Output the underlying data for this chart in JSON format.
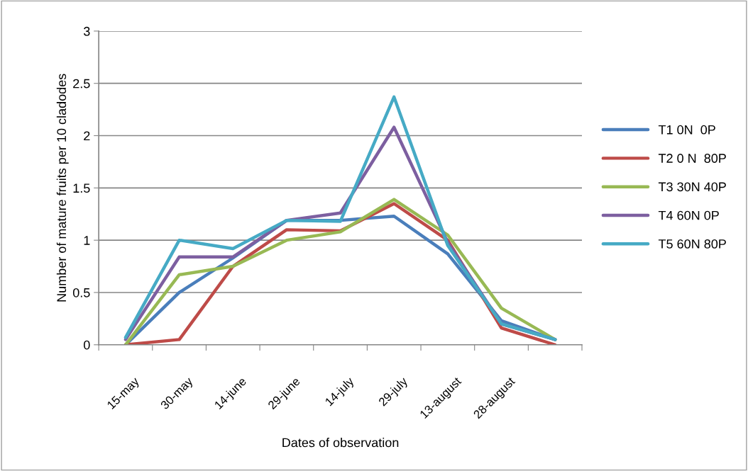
{
  "chart_data": {
    "type": "line",
    "xlabel": "Dates of observation",
    "ylabel": "Number of mature fruits per 10 cladodes",
    "categories": [
      "15-may",
      "30-may",
      "14-june",
      "29-june",
      "14-july",
      "29-july",
      "13-august",
      "28-august",
      null
    ],
    "series": [
      {
        "name": "T1 0N  0P",
        "color": "#4a7ebb",
        "values": [
          0,
          0.5,
          0.83,
          1.19,
          1.19,
          1.23,
          0.87,
          0.23,
          0.05
        ]
      },
      {
        "name": "T2 0 N  80P",
        "color": "#be4b48",
        "values": [
          0,
          0.05,
          0.75,
          1.1,
          1.09,
          1.35,
          1.0,
          0.16,
          0.0
        ]
      },
      {
        "name": "T3 30N 40P",
        "color": "#98b954",
        "values": [
          0,
          0.67,
          0.75,
          1.0,
          1.08,
          1.39,
          1.05,
          0.35,
          0.05
        ]
      },
      {
        "name": "T4 60N 0P",
        "color": "#7d5fa0",
        "values": [
          0.05,
          0.84,
          0.84,
          1.19,
          1.26,
          2.08,
          0.98,
          0.2,
          0.05
        ]
      },
      {
        "name": "T5 60N 80P",
        "color": "#46aac5",
        "values": [
          0.07,
          1.0,
          0.92,
          1.19,
          1.18,
          2.37,
          0.95,
          0.2,
          0.05
        ]
      }
    ],
    "ylim": [
      0,
      3
    ],
    "yticks": [
      0,
      0.5,
      1,
      1.5,
      2,
      2.5,
      3
    ],
    "grid": "y",
    "legend": "right",
    "marker": "none",
    "line_style": "solid"
  }
}
